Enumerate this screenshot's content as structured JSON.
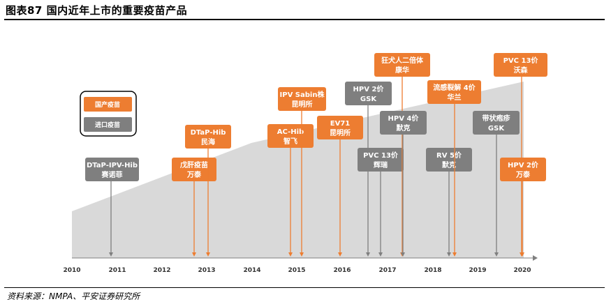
{
  "title": "图表87    国内近年上市的重要疫苗产品",
  "source": "资料来源：NMPA、平安证券研究所",
  "colors": {
    "domestic": "#ED7D31",
    "imported": "#7F7F7F",
    "area": "#D9D9D9",
    "axis": "#7F7F7F"
  },
  "legend": {
    "domestic": "国产疫苗",
    "imported": "进口疫苗"
  },
  "years": [
    "2010",
    "2011",
    "2012",
    "2013",
    "2014",
    "2015",
    "2016",
    "2017",
    "2018",
    "2019",
    "2020"
  ],
  "products": [
    {
      "id": "p01",
      "line1": "DTaP-IPV-Hib",
      "line2": "赛诺菲",
      "kind": "imported"
    },
    {
      "id": "p02",
      "line1": "戊肝疫苗",
      "line2": "万泰",
      "kind": "domestic"
    },
    {
      "id": "p03",
      "line1": "DTaP-Hib",
      "line2": "民海",
      "kind": "domestic"
    },
    {
      "id": "p04",
      "line1": "AC-Hib",
      "line2": "智飞",
      "kind": "domestic"
    },
    {
      "id": "p05",
      "line1": "IPV Sabin株",
      "line2": "昆明所",
      "kind": "domestic"
    },
    {
      "id": "p06",
      "line1": "EV71",
      "line2": "昆明所",
      "kind": "domestic"
    },
    {
      "id": "p07",
      "line1": "HPV 2价",
      "line2": "GSK",
      "kind": "imported"
    },
    {
      "id": "p08",
      "line1": "PVC 13价",
      "line2": "辉瑞",
      "kind": "imported"
    },
    {
      "id": "p09",
      "line1": "狂犬人二倍体",
      "line2": "康华",
      "kind": "domestic"
    },
    {
      "id": "p10",
      "line1": "HPV 4价",
      "line2": "默克",
      "kind": "imported"
    },
    {
      "id": "p11",
      "line1": "RV 5价",
      "line2": "默克",
      "kind": "imported"
    },
    {
      "id": "p12",
      "line1": "流感裂解 4价",
      "line2": "华兰",
      "kind": "domestic"
    },
    {
      "id": "p13",
      "line1": "带状疱疹",
      "line2": "GSK",
      "kind": "imported"
    },
    {
      "id": "p14",
      "line1": "PVC 13价",
      "line2": "沃森",
      "kind": "domestic"
    },
    {
      "id": "p15",
      "line1": "HPV 2价",
      "line2": "万泰",
      "kind": "domestic"
    }
  ]
}
